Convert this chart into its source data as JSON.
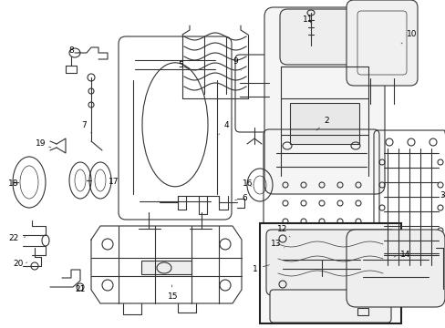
{
  "bg_color": "#ffffff",
  "line_color": "#333333",
  "label_color": "#000000",
  "figsize": [
    4.89,
    3.6
  ],
  "dpi": 100
}
